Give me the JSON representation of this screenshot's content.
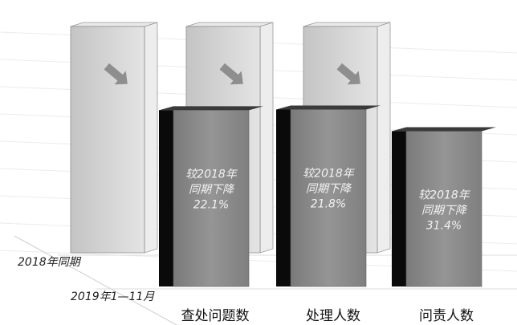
{
  "chart_data": {
    "type": "bar",
    "style": "3d-clustered-depth",
    "categories": [
      "查处问题数",
      "处理人数",
      "问责人数"
    ],
    "series": [
      {
        "name": "2018年同期",
        "values": [
          100,
          100,
          100
        ],
        "color": "#d4d4d4"
      },
      {
        "name": "2019年1—11月",
        "values": [
          77.9,
          78.2,
          68.6
        ],
        "color": "#8a8a8a"
      }
    ],
    "annotations": [
      [
        "较2018年",
        "同期下降",
        "22.1%"
      ],
      [
        "较2018年",
        "同期下降",
        "21.8%"
      ],
      [
        "较2018年",
        "同期下降",
        "31.4%"
      ]
    ],
    "arrow_icon": "down-right-arrow-icon",
    "ylim": [
      0,
      100
    ],
    "grid": true,
    "legend": "none"
  }
}
